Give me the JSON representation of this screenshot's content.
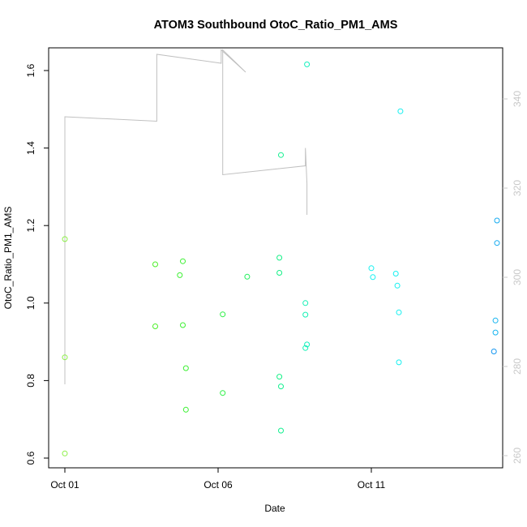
{
  "chart_data": {
    "type": "scatter",
    "title": "ATOM3 Southbound OtoC_Ratio_PM1_AMS",
    "xlabel": "Date",
    "ylabel": "OtoC_Ratio_PM1_AMS",
    "x_tick_labels": [
      "Oct 01",
      "Oct 06",
      "Oct 11"
    ],
    "y_tick_labels": [
      "0.6",
      "0.8",
      "1.0",
      "1.2",
      "1.4",
      "1.6"
    ],
    "y2_tick_labels": [
      "260",
      "280",
      "300",
      "320",
      "340"
    ],
    "x_ticks": [
      "2018-10-01",
      "2018-10-06",
      "2018-10-11"
    ],
    "xlim": [
      "2018-10-01",
      "2018-10-14.6"
    ],
    "ylim": [
      0.58,
      1.66
    ],
    "y2lim": [
      258,
      352
    ],
    "y2_ticks": [
      260,
      280,
      300,
      320,
      340
    ],
    "grid": false,
    "legend": "none",
    "colors": {
      "points_early": "#7FFF00",
      "points_mid": "#00FF7F",
      "points_late": "#00FFFF",
      "points_end": "#00BFFF",
      "line": "#c0c0c0",
      "right_axis": "#c8c8c8"
    },
    "series": [
      {
        "marker": "circle",
        "points": [
          {
            "x": 0.0,
            "y": 1.165,
            "c": "#8cf046"
          },
          {
            "x": 0.0,
            "y": 0.86,
            "c": "#8cf046"
          },
          {
            "x": 0.0,
            "y": 0.612,
            "c": "#8cf046"
          },
          {
            "x": 2.95,
            "y": 1.1,
            "c": "#4cf028"
          },
          {
            "x": 2.95,
            "y": 0.94,
            "c": "#4cf028"
          },
          {
            "x": 3.75,
            "y": 1.072,
            "c": "#3cf032"
          },
          {
            "x": 3.85,
            "y": 1.108,
            "c": "#3cf032"
          },
          {
            "x": 3.85,
            "y": 0.943,
            "c": "#3cf032"
          },
          {
            "x": 3.95,
            "y": 0.832,
            "c": "#3cf032"
          },
          {
            "x": 3.95,
            "y": 0.725,
            "c": "#3cf032"
          },
          {
            "x": 5.15,
            "y": 0.971,
            "c": "#2cf046"
          },
          {
            "x": 5.15,
            "y": 0.768,
            "c": "#2cf046"
          },
          {
            "x": 5.95,
            "y": 1.068,
            "c": "#1ef05a"
          },
          {
            "x": 7.0,
            "y": 1.117,
            "c": "#14f086"
          },
          {
            "x": 7.0,
            "y": 1.078,
            "c": "#14f086"
          },
          {
            "x": 7.0,
            "y": 0.81,
            "c": "#14f086"
          },
          {
            "x": 7.05,
            "y": 1.382,
            "c": "#14f090"
          },
          {
            "x": 7.05,
            "y": 0.785,
            "c": "#14f090"
          },
          {
            "x": 7.05,
            "y": 0.671,
            "c": "#14f090"
          },
          {
            "x": 7.85,
            "y": 1.0,
            "c": "#14f0b4"
          },
          {
            "x": 7.85,
            "y": 0.97,
            "c": "#14f0b4"
          },
          {
            "x": 7.85,
            "y": 0.884,
            "c": "#14f0b4"
          },
          {
            "x": 7.9,
            "y": 1.616,
            "c": "#14f0be"
          },
          {
            "x": 7.9,
            "y": 0.893,
            "c": "#14f0be"
          },
          {
            "x": 10.0,
            "y": 1.09,
            "c": "#14f0f0"
          },
          {
            "x": 10.05,
            "y": 1.067,
            "c": "#14f0f0"
          },
          {
            "x": 10.8,
            "y": 1.076,
            "c": "#14f0f0"
          },
          {
            "x": 10.85,
            "y": 1.045,
            "c": "#14f0f0"
          },
          {
            "x": 10.9,
            "y": 0.847,
            "c": "#14f0f0"
          },
          {
            "x": 10.9,
            "y": 0.976,
            "c": "#14f0f0"
          },
          {
            "x": 10.95,
            "y": 1.495,
            "c": "#14f0f0"
          },
          {
            "x": 14.0,
            "y": 0.875,
            "c": "#1496f0"
          },
          {
            "x": 14.05,
            "y": 0.955,
            "c": "#14b4f0"
          },
          {
            "x": 14.05,
            "y": 0.924,
            "c": "#14b4f0"
          },
          {
            "x": 14.1,
            "y": 1.213,
            "c": "#14aaf0"
          },
          {
            "x": 14.1,
            "y": 1.155,
            "c": "#14aaf0"
          }
        ]
      },
      {
        "marker": "line",
        "axis": "right",
        "points": [
          {
            "x": 0.0,
            "y": 276
          },
          {
            "x": 0.0,
            "y": 336
          },
          {
            "x": 3.0,
            "y": 335
          },
          {
            "x": 3.0,
            "y": 337
          },
          {
            "x": 3.0,
            "y": 350
          },
          {
            "x": 5.1,
            "y": 348
          },
          {
            "x": 5.1,
            "y": 351
          },
          {
            "x": 5.9,
            "y": 346
          },
          {
            "x": 5.15,
            "y": 351
          },
          {
            "x": 5.15,
            "y": 323
          },
          {
            "x": 7.85,
            "y": 325
          },
          {
            "x": 7.85,
            "y": 329
          },
          {
            "x": 7.9,
            "y": 321
          },
          {
            "x": 7.9,
            "y": 314
          }
        ]
      }
    ]
  }
}
